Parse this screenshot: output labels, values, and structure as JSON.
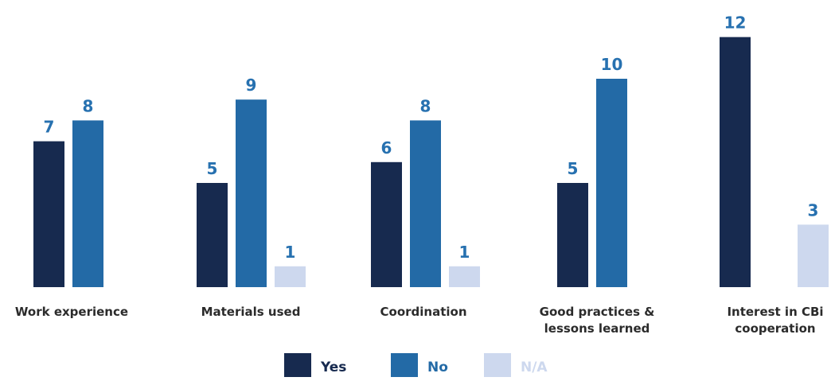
{
  "chart_data": {
    "type": "bar",
    "categories": [
      [
        "Work experience"
      ],
      [
        "Materials used"
      ],
      [
        "Coordination"
      ],
      [
        "Good practices &",
        "lessons learned"
      ],
      [
        "Interest in CBi",
        "cooperation"
      ]
    ],
    "series": [
      {
        "name": "Yes",
        "color": "#172a4f",
        "label_color": "#2771b0",
        "values": [
          7,
          5,
          6,
          5,
          12
        ]
      },
      {
        "name": "No",
        "color": "#236aa6",
        "label_color": "#2771b0",
        "values": [
          8,
          9,
          8,
          10,
          null
        ]
      },
      {
        "name": "N/A",
        "color": "#cdd8ee",
        "label_color": "#2771b0",
        "values": [
          null,
          1,
          1,
          null,
          3
        ]
      }
    ],
    "legend": {
      "position": "bottom",
      "text_colors": [
        "#172a4f",
        "#236aa6",
        "#cdd8ee"
      ]
    },
    "ylim": [
      0,
      12
    ],
    "grid": false,
    "axis_labels_visible": false
  }
}
